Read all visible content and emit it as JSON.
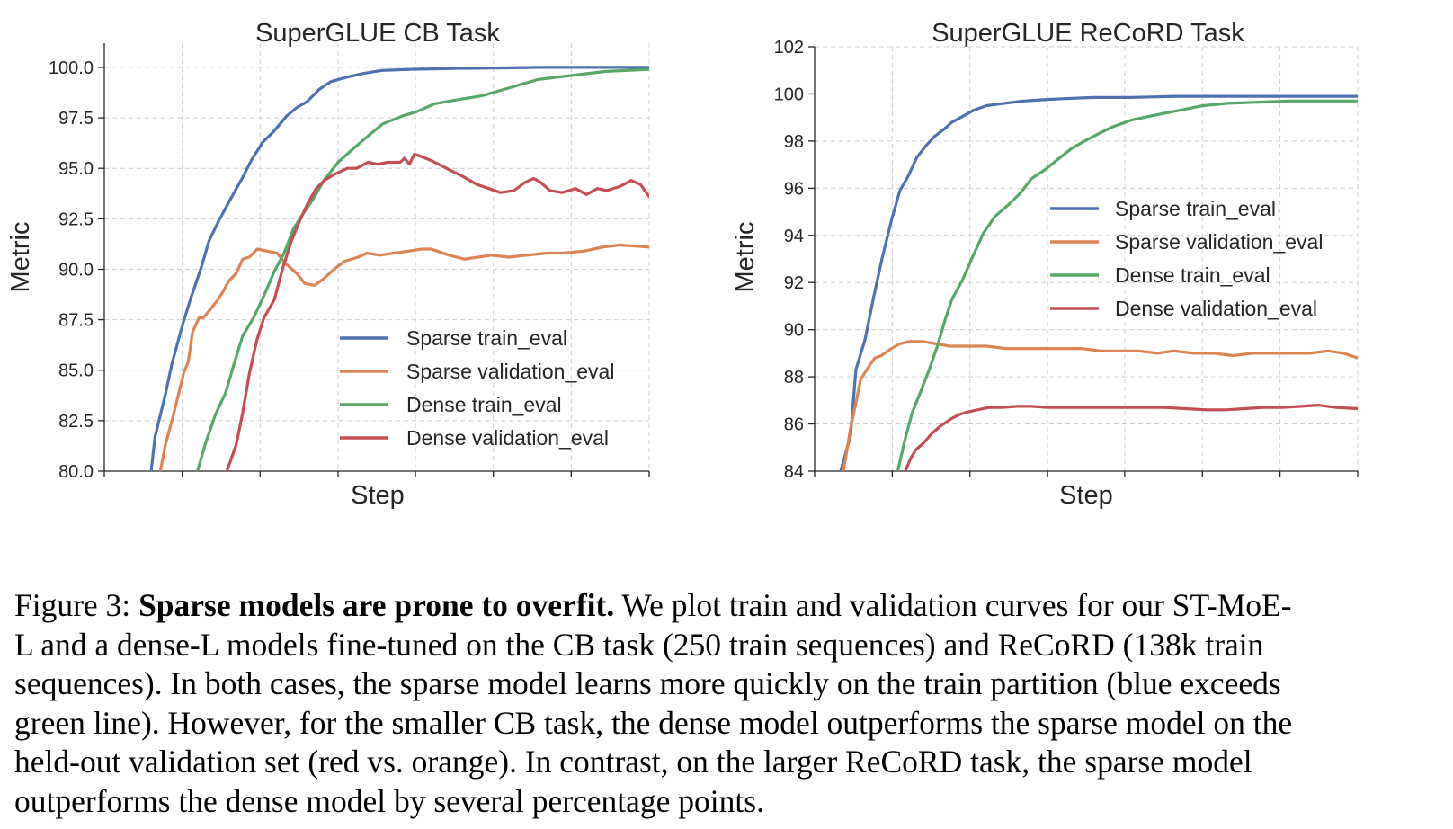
{
  "chart_data": [
    {
      "type": "line",
      "title": "SuperGLUE CB Task",
      "xlabel": "Step",
      "ylabel": "Metric",
      "xlim": [
        0,
        100
      ],
      "ylim": [
        80,
        101.2
      ],
      "yticks": [
        80.0,
        82.5,
        85.0,
        87.5,
        90.0,
        92.5,
        95.0,
        97.5,
        100.0
      ],
      "ytick_labels": [
        "80.0",
        "82.5",
        "85.0",
        "87.5",
        "90.0",
        "92.5",
        "95.0",
        "97.5",
        "100.0"
      ],
      "xticks": [
        0,
        14.3,
        28.6,
        42.9,
        57.1,
        71.4,
        85.7,
        100
      ],
      "grid": true,
      "legend_position": "lower-right",
      "series": [
        {
          "name": "Sparse train_eval",
          "color": "#4c72b0",
          "x": [
            8.6,
            9.3,
            11.2,
            12.4,
            14.3,
            15.8,
            17.8,
            19.2,
            21,
            23,
            25.5,
            27,
            29.1,
            31,
            33.5,
            35.3,
            37.2,
            39.4,
            41.6,
            44.3,
            47.5,
            51,
            56,
            64,
            72,
            80,
            90,
            100
          ],
          "y": [
            80,
            81.7,
            83.8,
            85.3,
            87.2,
            88.5,
            90.1,
            91.4,
            92.4,
            93.4,
            94.6,
            95.4,
            96.3,
            96.8,
            97.6,
            98.0,
            98.3,
            98.9,
            99.3,
            99.5,
            99.7,
            99.85,
            99.9,
            99.95,
            99.97,
            100,
            100,
            100
          ]
        },
        {
          "name": "Sparse validation_eval",
          "color": "#dd8452",
          "x": [
            10.3,
            11.2,
            12.6,
            13.6,
            14.6,
            15.4,
            16.2,
            17.4,
            18.2,
            19.4,
            20.6,
            21.6,
            22.8,
            24.2,
            25.4,
            26.6,
            28.1,
            29.9,
            31.7,
            33.2,
            35.3,
            36.8,
            38.6,
            40.1,
            42.2,
            44.1,
            46.6,
            48.2,
            50.6,
            53.2,
            55.8,
            58.3,
            60,
            63.3,
            66.1,
            68.6,
            71.1,
            74.2,
            77.6,
            81.2,
            84,
            88,
            91.5,
            94.6,
            100
          ],
          "y": [
            80,
            81.3,
            82.7,
            83.8,
            84.9,
            85.4,
            86.9,
            87.6,
            87.6,
            88.0,
            88.4,
            88.8,
            89.4,
            89.8,
            90.5,
            90.6,
            91.0,
            90.9,
            90.8,
            90.3,
            89.8,
            89.3,
            89.2,
            89.5,
            90.0,
            90.4,
            90.6,
            90.8,
            90.7,
            90.8,
            90.9,
            91.0,
            91.0,
            90.7,
            90.5,
            90.6,
            90.7,
            90.6,
            90.7,
            90.8,
            90.8,
            90.9,
            91.1,
            91.2,
            91.1
          ]
        },
        {
          "name": "Dense train_eval",
          "color": "#55a868",
          "x": [
            17.1,
            18.6,
            20.4,
            22.3,
            23.8,
            25.4,
            27.4,
            29.3,
            31.2,
            33.0,
            34.7,
            36.6,
            38.4,
            40.3,
            42.9,
            45.8,
            48.4,
            51.1,
            54.8,
            57.3,
            60.6,
            64.8,
            69.4,
            74.5,
            79.6,
            85.8,
            92,
            100
          ],
          "y": [
            80.0,
            81.4,
            82.8,
            83.9,
            85.3,
            86.7,
            87.6,
            88.7,
            89.9,
            90.8,
            92.0,
            92.8,
            93.5,
            94.4,
            95.3,
            96.0,
            96.6,
            97.2,
            97.6,
            97.8,
            98.2,
            98.4,
            98.6,
            99.0,
            99.4,
            99.6,
            99.8,
            99.9
          ]
        },
        {
          "name": "Dense validation_eval",
          "color": "#c44e52",
          "x": [
            22.5,
            24.2,
            25.4,
            26.6,
            28.0,
            29.3,
            31.2,
            32.8,
            34.2,
            35.7,
            37.4,
            38.9,
            40.4,
            42.2,
            44.6,
            46.3,
            48.4,
            50.2,
            52.0,
            54.3,
            55.1,
            56.0,
            56.9,
            58.0,
            59.9,
            62.8,
            65.8,
            68.4,
            70.6,
            72.7,
            75.2,
            77.2,
            78.8,
            80.1,
            81.8,
            84.0,
            86.5,
            88.5,
            90.5,
            92.2,
            94.6,
            96.7,
            98.4,
            100
          ],
          "y": [
            80.0,
            81.3,
            82.9,
            84.8,
            86.5,
            87.6,
            88.5,
            90.1,
            91.3,
            92.3,
            93.3,
            94.0,
            94.4,
            94.7,
            95.0,
            95.0,
            95.3,
            95.2,
            95.3,
            95.3,
            95.5,
            95.2,
            95.7,
            95.6,
            95.4,
            95.0,
            94.6,
            94.2,
            94.0,
            93.8,
            93.9,
            94.3,
            94.5,
            94.3,
            93.9,
            93.8,
            94.0,
            93.7,
            94.0,
            93.9,
            94.1,
            94.4,
            94.2,
            93.6
          ]
        }
      ]
    },
    {
      "type": "line",
      "title": "SuperGLUE ReCoRD Task",
      "xlabel": "Step",
      "ylabel": "Metric",
      "xlim": [
        0,
        100
      ],
      "ylim": [
        84,
        102
      ],
      "yticks": [
        84,
        86,
        88,
        90,
        92,
        94,
        96,
        98,
        100,
        102
      ],
      "ytick_labels": [
        "84",
        "86",
        "88",
        "90",
        "92",
        "94",
        "96",
        "98",
        "100",
        "102"
      ],
      "xticks": [
        0,
        14.3,
        28.6,
        42.9,
        57.1,
        71.4,
        85.7,
        100
      ],
      "grid": true,
      "legend_position": "center-right",
      "series": [
        {
          "name": "Sparse train_eval",
          "color": "#4c72b0",
          "x": [
            4.8,
            6.6,
            7.6,
            9.3,
            10.8,
            12.4,
            14.1,
            15.7,
            17.2,
            18.8,
            20.5,
            22.1,
            23.8,
            25.3,
            26.9,
            29.2,
            31.6,
            34.9,
            38.5,
            41.8,
            46.0,
            51.3,
            58.2,
            66.7,
            76.0,
            86.7,
            100
          ],
          "y": [
            84,
            85.5,
            88.3,
            89.6,
            91.3,
            93.0,
            94.6,
            95.9,
            96.5,
            97.3,
            97.8,
            98.2,
            98.5,
            98.8,
            99.0,
            99.3,
            99.5,
            99.6,
            99.7,
            99.75,
            99.8,
            99.85,
            99.85,
            99.9,
            99.9,
            99.9,
            99.9
          ]
        },
        {
          "name": "Sparse validation_eval",
          "color": "#dd8452",
          "x": [
            5.3,
            6.6,
            7.6,
            8.5,
            9.6,
            11.1,
            12.3,
            14.1,
            15.7,
            17.4,
            19.9,
            22.4,
            24.9,
            28.1,
            31.6,
            35.2,
            38.7,
            42.2,
            45.8,
            49.1,
            52.6,
            56.0,
            59.6,
            63.1,
            66.1,
            69.9,
            73.5,
            77.1,
            80.6,
            84.1,
            87.6,
            91.1,
            94.6,
            97.4,
            100
          ],
          "y": [
            84.0,
            85.8,
            86.9,
            87.9,
            88.3,
            88.8,
            88.9,
            89.2,
            89.4,
            89.5,
            89.5,
            89.4,
            89.3,
            89.3,
            89.3,
            89.2,
            89.2,
            89.2,
            89.2,
            89.2,
            89.1,
            89.1,
            89.1,
            89.0,
            89.1,
            89.0,
            89.0,
            88.9,
            89.0,
            89.0,
            89.0,
            89.0,
            89.1,
            89.0,
            88.8
          ]
        },
        {
          "name": "Dense train_eval",
          "color": "#55a868",
          "x": [
            15.3,
            16.7,
            18.0,
            19.4,
            21.1,
            22.6,
            24.0,
            25.3,
            27.2,
            29.1,
            31.1,
            33.2,
            35.7,
            37.9,
            39.9,
            42.5,
            45.2,
            47.4,
            49.7,
            52.2,
            54.8,
            58.5,
            62.7,
            67.1,
            71.4,
            76.0,
            81.8,
            87.4,
            92.6,
            100
          ],
          "y": [
            84.0,
            85.4,
            86.5,
            87.3,
            88.3,
            89.3,
            90.4,
            91.3,
            92.1,
            93.1,
            94.1,
            94.8,
            95.3,
            95.8,
            96.4,
            96.8,
            97.3,
            97.7,
            98.0,
            98.3,
            98.6,
            98.9,
            99.1,
            99.3,
            99.5,
            99.6,
            99.65,
            99.7,
            99.7,
            99.7
          ]
        },
        {
          "name": "Dense validation_eval",
          "color": "#c44e52",
          "x": [
            16.7,
            17.6,
            18.6,
            20.1,
            21.6,
            23.1,
            25.0,
            26.6,
            28.0,
            30.0,
            32.0,
            34.5,
            37.2,
            39.9,
            43.0,
            46.4,
            49.8,
            53.0,
            56.9,
            60.6,
            64.4,
            68.3,
            72.2,
            75.8,
            79.1,
            82.6,
            86.1,
            89.6,
            92.7,
            96.0,
            100
          ],
          "y": [
            84.0,
            84.5,
            84.9,
            85.2,
            85.6,
            85.9,
            86.2,
            86.4,
            86.5,
            86.6,
            86.7,
            86.7,
            86.75,
            86.75,
            86.7,
            86.7,
            86.7,
            86.7,
            86.7,
            86.7,
            86.7,
            86.65,
            86.6,
            86.6,
            86.65,
            86.7,
            86.7,
            86.75,
            86.8,
            86.7,
            86.65
          ]
        }
      ]
    }
  ],
  "caption": {
    "prefix": "Figure 3: ",
    "bold": "Sparse models are prone to overfit.",
    "lines": [
      " We plot train and validation curves for our ST-MoE-",
      "L and a dense-L models fine-tuned on the CB task (250 train sequences) and ReCoRD (138k train",
      "sequences). In both cases, the sparse model learns more quickly on the train partition (blue exceeds",
      "green line). However, for the smaller CB task, the dense model outperforms the sparse model on the",
      "held-out validation set (red vs. orange).  In contrast, on the larger ReCoRD task, the sparse model",
      "outperforms the dense model by several percentage points."
    ]
  }
}
